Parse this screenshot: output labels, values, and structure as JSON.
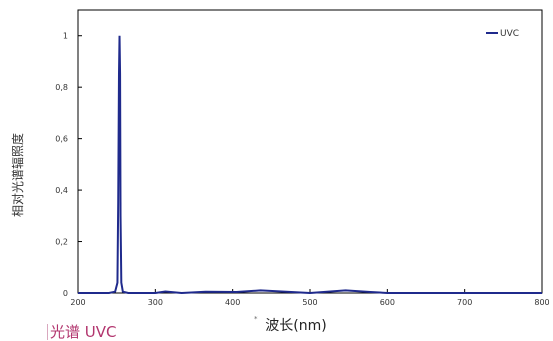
{
  "caption": "光谱 UVC",
  "chart_data": {
    "type": "line",
    "xlabel": "波长(nm)",
    "ylabel": "相对光谱辐照度",
    "xlim": [
      200,
      800
    ],
    "ylim": [
      0,
      1.1
    ],
    "x_ticks": [
      200,
      300,
      400,
      500,
      600,
      700,
      800
    ],
    "x_tick_labels": [
      "200",
      "300",
      "400",
      "500",
      "600",
      "700",
      "800"
    ],
    "y_ticks": [
      0,
      0.2,
      0.4,
      0.6,
      0.8,
      1
    ],
    "y_tick_labels": [
      "0",
      "0,2",
      "0,4",
      "0,6",
      "0,8",
      "1"
    ],
    "grid": false,
    "legend_position": "top-right",
    "series": [
      {
        "name": "UVC",
        "color": "#1f2a8c",
        "x": [
          200,
          240,
          248,
          251,
          252,
          253,
          253.7,
          254.4,
          255,
          256,
          258,
          265,
          300,
          313,
          334,
          365,
          405,
          436,
          500,
          546,
          578,
          600,
          700,
          800
        ],
        "y": [
          0,
          0,
          0.005,
          0.04,
          0.35,
          0.85,
          1.0,
          0.85,
          0.3,
          0.04,
          0.005,
          0,
          0,
          0.006,
          0,
          0.005,
          0.004,
          0.01,
          0,
          0.01,
          0.004,
          0,
          0,
          0
        ]
      }
    ]
  }
}
